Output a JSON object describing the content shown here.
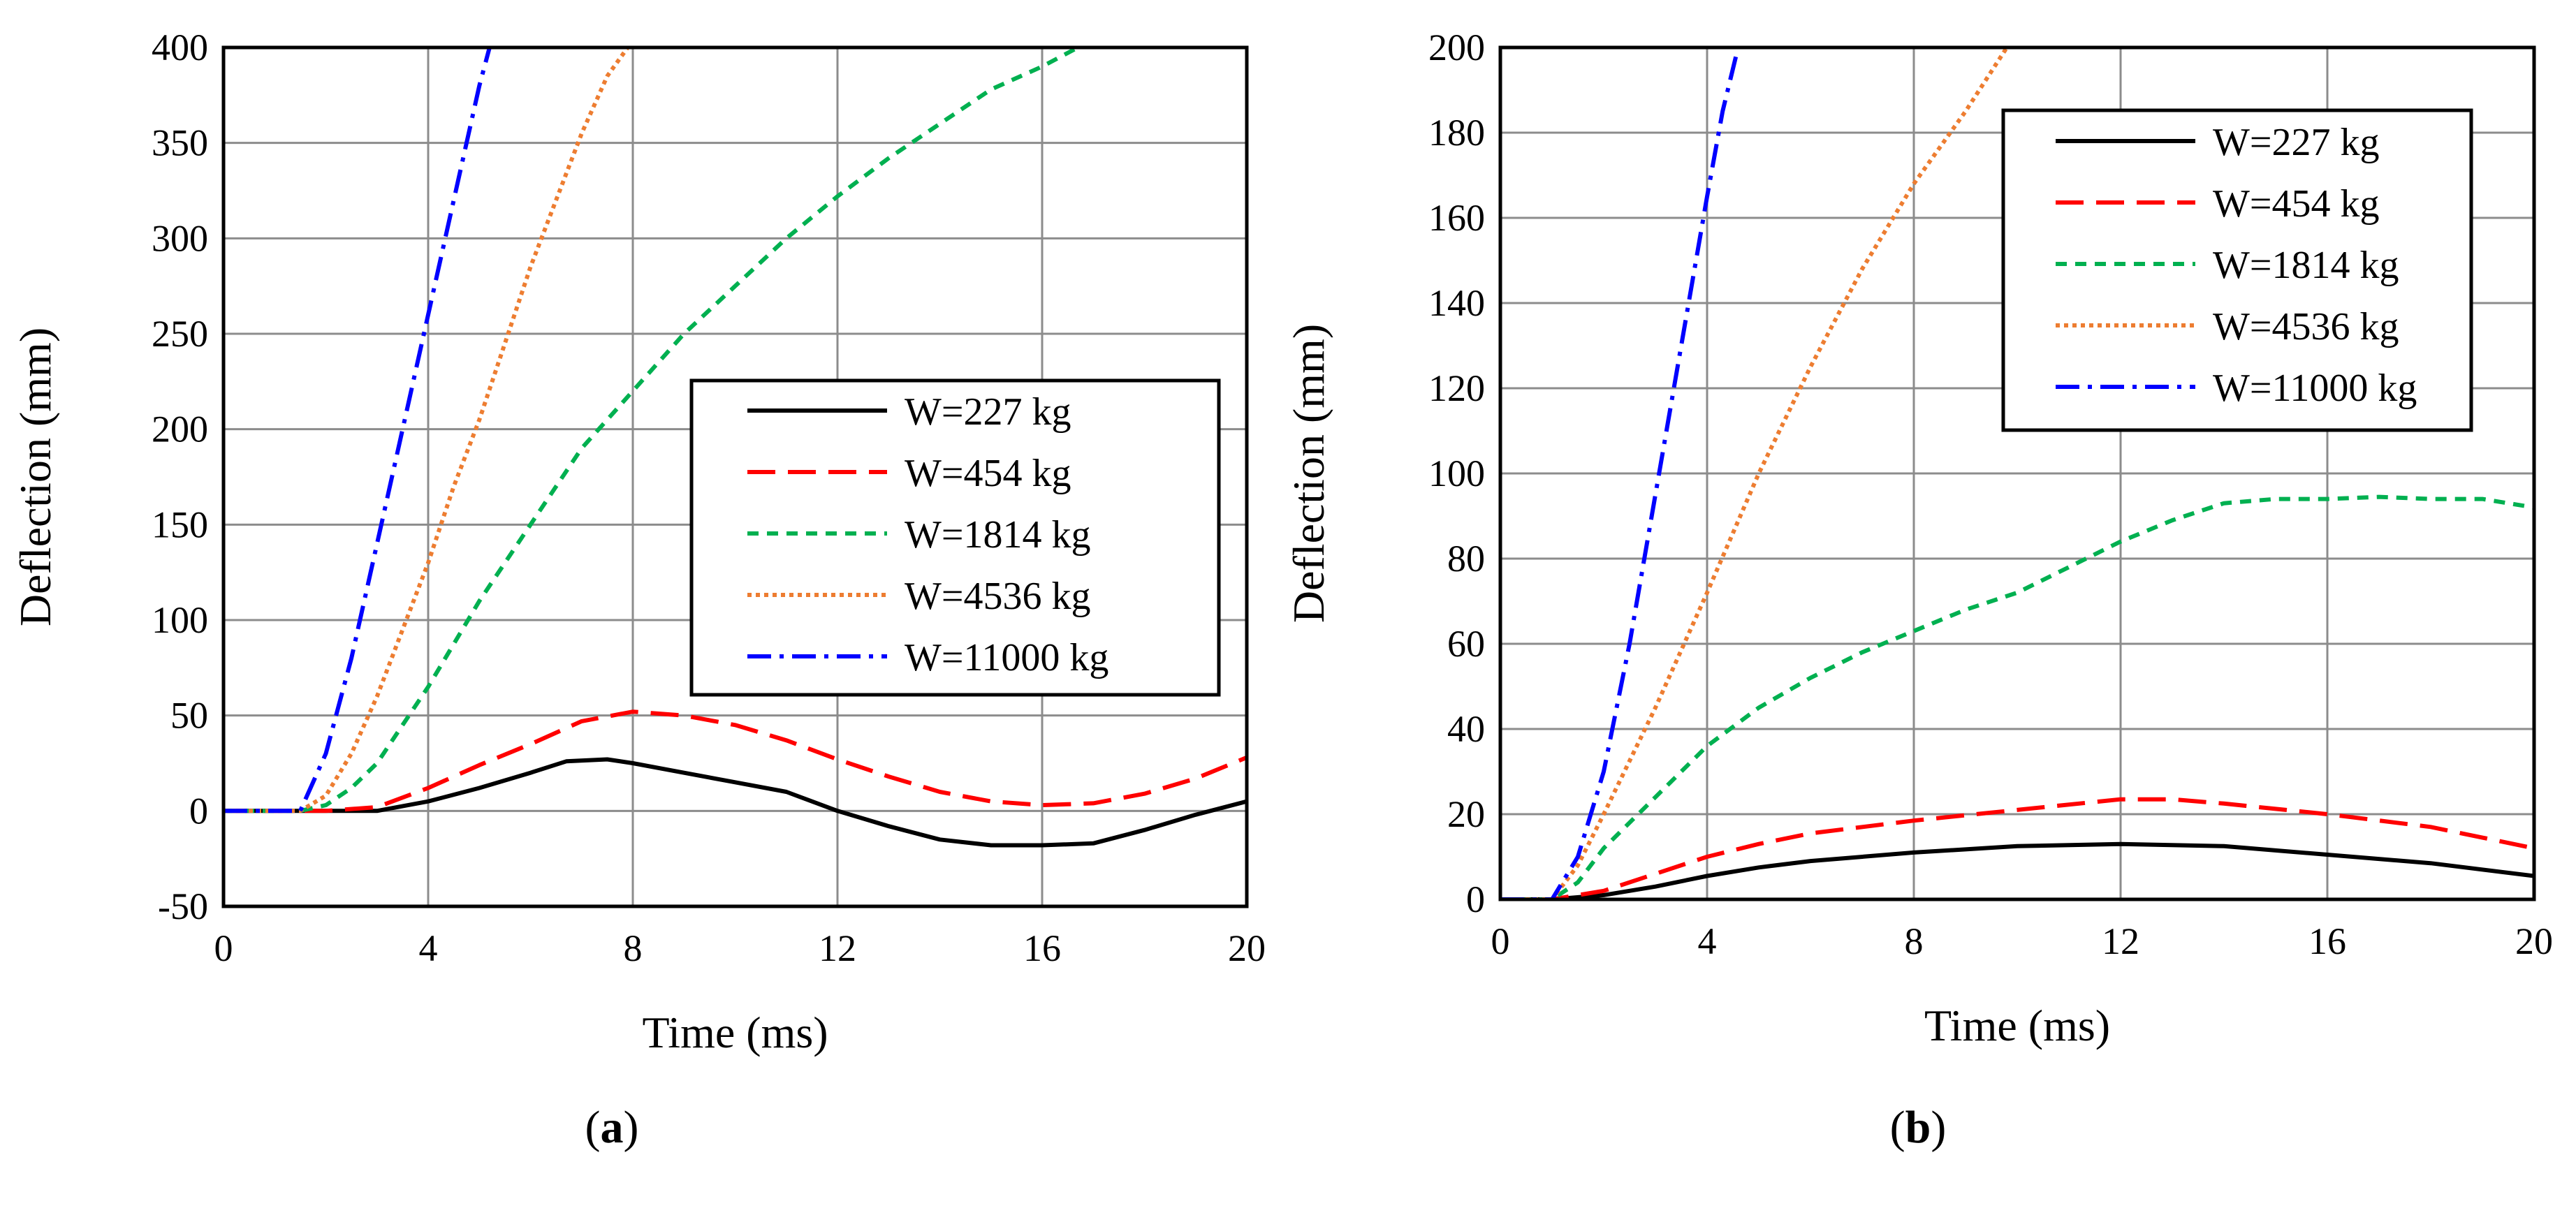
{
  "chart_data": [
    {
      "panel_label": "(a)",
      "type": "line",
      "title": "",
      "xlabel": "Time (ms)",
      "ylabel": "Deflection (mm)",
      "xlim": [
        0,
        20
      ],
      "ylim": [
        -50,
        400
      ],
      "xticks": [
        0,
        4,
        8,
        12,
        16,
        20
      ],
      "yticks": [
        -50,
        0,
        50,
        100,
        150,
        200,
        250,
        300,
        350,
        400
      ],
      "grid": true,
      "legend_position": "center-right",
      "series": [
        {
          "name": "W=227 kg",
          "color": "#000000",
          "style": "solid",
          "x": [
            0,
            2,
            3,
            4,
            5,
            6,
            6.7,
            7.5,
            8,
            9,
            10,
            11,
            12,
            13,
            14,
            15,
            16,
            17,
            18,
            19,
            20
          ],
          "y": [
            0,
            0,
            0,
            5,
            12,
            20,
            26,
            27,
            25,
            20,
            15,
            10,
            0,
            -8,
            -15,
            -18,
            -18,
            -17,
            -10,
            -2,
            5
          ]
        },
        {
          "name": "W=454 kg",
          "color": "#ff0000",
          "style": "dash",
          "x": [
            0,
            2,
            3,
            4,
            5,
            6,
            7,
            8,
            9,
            10,
            11,
            12,
            13,
            14,
            15,
            16,
            17,
            18,
            19,
            20
          ],
          "y": [
            0,
            0,
            2,
            12,
            24,
            35,
            47,
            52,
            50,
            45,
            37,
            27,
            18,
            10,
            5,
            3,
            4,
            9,
            17,
            28
          ]
        },
        {
          "name": "W=1814 kg",
          "color": "#00b050",
          "style": "short-dash",
          "x": [
            0,
            1.5,
            2,
            2.5,
            3,
            3.5,
            4,
            5,
            6,
            7,
            8,
            9,
            10,
            11,
            12,
            13,
            14,
            15,
            16,
            16.7
          ],
          "y": [
            0,
            0,
            3,
            12,
            25,
            45,
            65,
            110,
            150,
            190,
            220,
            250,
            275,
            300,
            322,
            342,
            360,
            378,
            390,
            400
          ]
        },
        {
          "name": "W=4536 kg",
          "color": "#ed7d31",
          "style": "dot",
          "x": [
            0,
            1.5,
            2,
            2.5,
            3,
            3.5,
            4,
            4.5,
            5,
            5.5,
            6,
            6.5,
            7,
            7.5,
            7.9
          ],
          "y": [
            0,
            0,
            8,
            30,
            60,
            95,
            130,
            170,
            205,
            245,
            285,
            320,
            355,
            385,
            400
          ]
        },
        {
          "name": "W=11000 kg",
          "color": "#0000ff",
          "style": "dash-dot",
          "x": [
            0,
            1.5,
            2,
            2.5,
            3,
            3.5,
            4,
            4.5,
            5,
            5.2
          ],
          "y": [
            0,
            0,
            30,
            80,
            140,
            200,
            260,
            320,
            380,
            400
          ]
        }
      ]
    },
    {
      "panel_label": "(b)",
      "type": "line",
      "title": "",
      "xlabel": "Time (ms)",
      "ylabel": "Deflection (mm)",
      "xlim": [
        0,
        20
      ],
      "ylim": [
        0,
        200
      ],
      "xticks": [
        0,
        4,
        8,
        12,
        16,
        20
      ],
      "yticks": [
        0,
        20,
        40,
        60,
        80,
        100,
        120,
        140,
        160,
        180,
        200
      ],
      "grid": true,
      "legend_position": "top-right",
      "series": [
        {
          "name": "W=227 kg",
          "color": "#000000",
          "style": "solid",
          "x": [
            0,
            1,
            2,
            3,
            4,
            5,
            6,
            8,
            10,
            12,
            14,
            16,
            18,
            20
          ],
          "y": [
            0,
            0,
            1,
            3,
            5.5,
            7.5,
            9,
            11,
            12.5,
            13,
            12.5,
            10.5,
            8.5,
            5.5
          ]
        },
        {
          "name": "W=454 kg",
          "color": "#ff0000",
          "style": "dash",
          "x": [
            0,
            1,
            2,
            3,
            4,
            5,
            6,
            8,
            10,
            12,
            13,
            14,
            16,
            18,
            20
          ],
          "y": [
            0,
            0,
            2,
            6,
            10,
            13,
            15.5,
            18.5,
            21,
            23.5,
            23.5,
            22.5,
            20,
            17,
            12
          ]
        },
        {
          "name": "W=1814 kg",
          "color": "#00b050",
          "style": "short-dash",
          "x": [
            0,
            1,
            1.5,
            2,
            3,
            4,
            5,
            6,
            7,
            8,
            9,
            10,
            11,
            12,
            13,
            14,
            15,
            16,
            17,
            18,
            19,
            20
          ],
          "y": [
            0,
            0,
            4,
            12,
            24,
            36,
            45,
            52,
            58,
            63,
            68,
            72,
            78,
            84,
            89,
            93,
            94,
            94,
            94.5,
            94,
            94,
            92
          ]
        },
        {
          "name": "W=4536 kg",
          "color": "#ed7d31",
          "style": "dot",
          "x": [
            0,
            1,
            1.5,
            2,
            3,
            4,
            5,
            6,
            7,
            8,
            9,
            9.8
          ],
          "y": [
            0,
            0,
            8,
            20,
            45,
            72,
            100,
            125,
            148,
            168,
            185,
            200
          ]
        },
        {
          "name": "W=11000 kg",
          "color": "#0000ff",
          "style": "dash-dot",
          "x": [
            0,
            1,
            1.5,
            2,
            2.5,
            3,
            3.5,
            4,
            4.3,
            4.6
          ],
          "y": [
            0,
            0,
            10,
            30,
            60,
            95,
            130,
            165,
            185,
            200
          ]
        }
      ]
    }
  ]
}
